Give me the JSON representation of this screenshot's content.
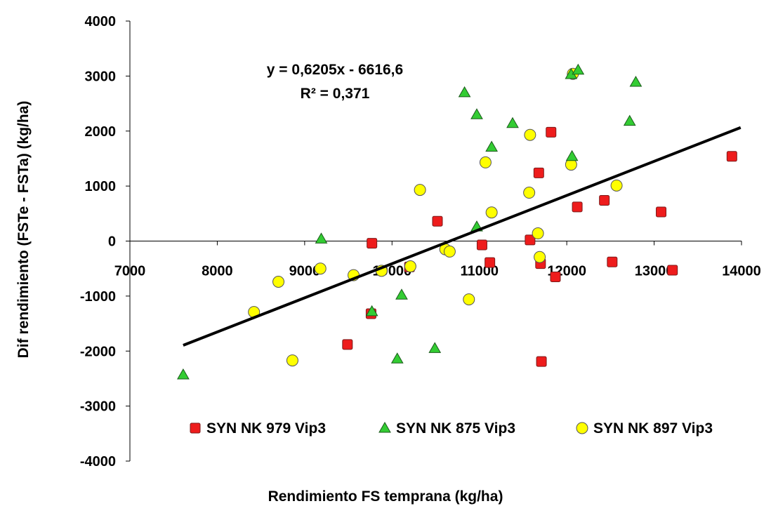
{
  "chart_data": {
    "type": "scatter",
    "xlabel": "Rendimiento FS temprana (kg/ha)",
    "ylabel": "Dif rendimiento (FSTe - FSTa) (kg/ha)",
    "xlim": [
      7000,
      14000
    ],
    "ylim": [
      -4000,
      4000
    ],
    "x_ticks": [
      "7000",
      "8000",
      "9000",
      "10000",
      "11000",
      "12000",
      "13000",
      "14000"
    ],
    "y_ticks": [
      "4000",
      "3000",
      "2000",
      "1000",
      "0",
      "-1000",
      "-2000",
      "-3000",
      "-4000"
    ],
    "grid": false,
    "legend_position": "bottom",
    "trendline": {
      "equation": "y = 0,6205x - 6616,6",
      "r2": "R² = 0,371",
      "slope": 0.6205,
      "intercept": -6616.6,
      "x_range": [
        7610,
        13990
      ],
      "color": "#000000"
    },
    "series": [
      {
        "name": "SYN NK 979 Vip3",
        "marker": "square",
        "color": "#ee1c1c",
        "points": [
          [
            9770,
            -40
          ],
          [
            9760,
            -1320
          ],
          [
            9490,
            -1880
          ],
          [
            10200,
            -470
          ],
          [
            10520,
            360
          ],
          [
            11030,
            -70
          ],
          [
            11120,
            -390
          ],
          [
            11580,
            20
          ],
          [
            11680,
            1240
          ],
          [
            11700,
            -410
          ],
          [
            11710,
            -2190
          ],
          [
            11820,
            1980
          ],
          [
            11870,
            -650
          ],
          [
            12120,
            620
          ],
          [
            12430,
            740
          ],
          [
            12520,
            -380
          ],
          [
            13080,
            530
          ],
          [
            13210,
            -530
          ],
          [
            13890,
            1540
          ]
        ]
      },
      {
        "name": "SYN NK 875 Vip3",
        "marker": "triangle",
        "color": "#33cc33",
        "points": [
          [
            7610,
            -2430
          ],
          [
            9190,
            40
          ],
          [
            9770,
            -1280
          ],
          [
            10060,
            -2140
          ],
          [
            10110,
            -980
          ],
          [
            10490,
            -1950
          ],
          [
            10830,
            2700
          ],
          [
            10970,
            2300
          ],
          [
            10970,
            260
          ],
          [
            11140,
            1710
          ],
          [
            11380,
            2140
          ],
          [
            12050,
            3030
          ],
          [
            12060,
            1540
          ],
          [
            12130,
            3110
          ],
          [
            12720,
            2180
          ],
          [
            12790,
            2890
          ]
        ]
      },
      {
        "name": "SYN NK 897 Vip3",
        "marker": "circle",
        "color": "#ffff00",
        "points": [
          [
            8420,
            -1290
          ],
          [
            8700,
            -740
          ],
          [
            8860,
            -2170
          ],
          [
            9180,
            -500
          ],
          [
            9560,
            -620
          ],
          [
            9880,
            -540
          ],
          [
            10210,
            -460
          ],
          [
            10320,
            930
          ],
          [
            10610,
            -150
          ],
          [
            10660,
            -190
          ],
          [
            10880,
            -1060
          ],
          [
            11070,
            1430
          ],
          [
            11140,
            520
          ],
          [
            11580,
            1930
          ],
          [
            11570,
            880
          ],
          [
            11670,
            140
          ],
          [
            11690,
            -290
          ],
          [
            12050,
            1390
          ],
          [
            12570,
            1010
          ],
          [
            12070,
            3040
          ]
        ]
      }
    ]
  }
}
